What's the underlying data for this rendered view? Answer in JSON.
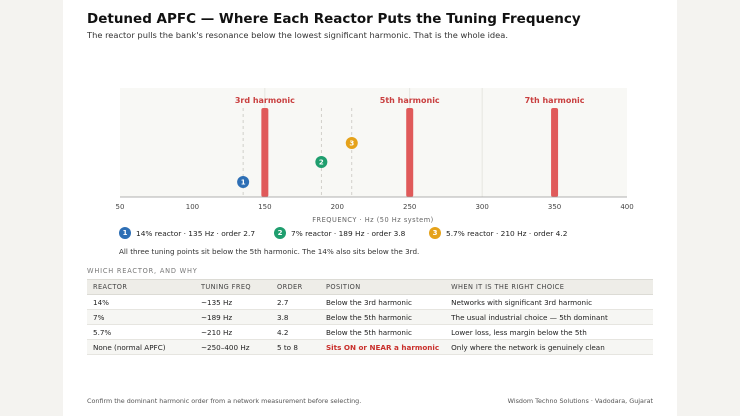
{
  "header": {
    "title": "Detuned APFC — Where Each Reactor Puts the Tuning Frequency",
    "subtitle": "The reactor pulls the bank's resonance below the lowest significant harmonic. That is the whole idea."
  },
  "chart_data": {
    "type": "scatter",
    "xlabel": "FREQUENCY · Hz (50 Hz system)",
    "xlim": [
      50,
      400
    ],
    "x_ticks": [
      "50",
      "100",
      "150",
      "200",
      "250",
      "300",
      "350",
      "400"
    ],
    "grid_x_at": [
      150,
      250,
      300
    ],
    "harmonics": [
      {
        "label": "3rd harmonic",
        "x": 150
      },
      {
        "label": "5th harmonic",
        "x": 250
      },
      {
        "label": "7th harmonic",
        "x": 350
      }
    ],
    "tuning_points": [
      {
        "id": "1",
        "x": 135,
        "level": 1,
        "color": "#2e6fb5"
      },
      {
        "id": "2",
        "x": 189,
        "level": 2,
        "color": "#1f9e6e"
      },
      {
        "id": "3",
        "x": 210,
        "level": 3,
        "color": "#e5a21a"
      }
    ],
    "harmonic_color": "#e05a5a"
  },
  "legend": [
    {
      "badge": "1",
      "text": "14% reactor · 135 Hz · order 2.7",
      "color": "#2e6fb5"
    },
    {
      "badge": "2",
      "text": "7% reactor · 189 Hz · order 3.8",
      "color": "#1f9e6e"
    },
    {
      "badge": "3",
      "text": "5.7% reactor · 210 Hz · order 4.2",
      "color": "#e5a21a"
    }
  ],
  "note": "All three tuning points sit below the 5th harmonic. The 14% also sits below the 3rd.",
  "table": {
    "section_title": "WHICH REACTOR, AND WHY",
    "columns": [
      "REACTOR",
      "TUNING FREQ",
      "ORDER",
      "POSITION",
      "WHEN IT IS THE RIGHT CHOICE"
    ],
    "rows": [
      [
        "14%",
        "~135 Hz",
        "2.7",
        "Below the 3rd harmonic",
        "Networks with significant 3rd harmonic"
      ],
      [
        "7%",
        "~189 Hz",
        "3.8",
        "Below the 5th harmonic",
        "The usual industrial choice — 5th dominant"
      ],
      [
        "5.7%",
        "~210 Hz",
        "4.2",
        "Below the 5th harmonic",
        "Lower loss, less margin below the 5th"
      ],
      [
        "None (normal APFC)",
        "~250–400 Hz",
        "5 to 8",
        "Sits ON or NEAR a harmonic",
        "Only where the network is genuinely clean"
      ]
    ]
  },
  "footer": {
    "left": "Confirm the dominant harmonic order from a network measurement before selecting.",
    "right": "Wisdom Techno Solutions · Vadodara, Gujarat"
  }
}
